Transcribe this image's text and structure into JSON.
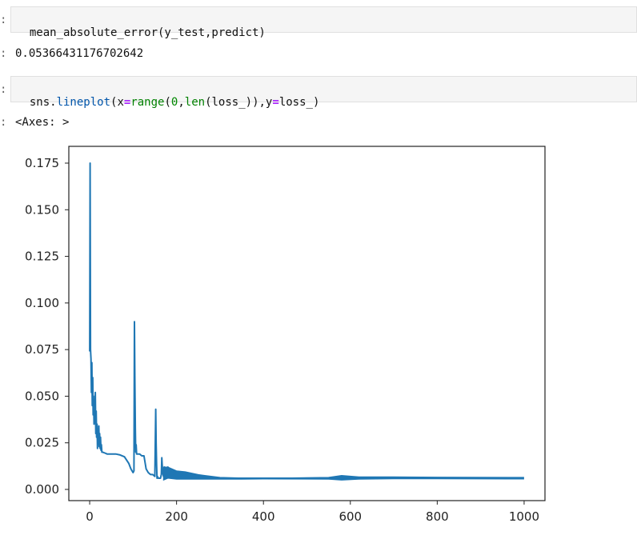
{
  "cells": [
    {
      "prompt": ":",
      "code": "mean_absolute_error(y_test,predict)",
      "output_prompt": ":",
      "output": "0.05366431176702642"
    },
    {
      "prompt": ":",
      "code_tokens": [
        {
          "text": "sns.",
          "kind": "plain"
        },
        {
          "text": "lineplot",
          "kind": "fn"
        },
        {
          "text": "(x",
          "kind": "plain"
        },
        {
          "text": "=",
          "kind": "op"
        },
        {
          "text": "range",
          "kind": "builtin"
        },
        {
          "text": "(",
          "kind": "plain"
        },
        {
          "text": "0",
          "kind": "num"
        },
        {
          "text": ",",
          "kind": "plain"
        },
        {
          "text": "len",
          "kind": "builtin"
        },
        {
          "text": "(loss_)),y",
          "kind": "plain"
        },
        {
          "text": "=",
          "kind": "op"
        },
        {
          "text": "loss_)",
          "kind": "plain"
        }
      ],
      "output_prompt": ":",
      "output": "<Axes: >"
    }
  ],
  "chart_data": {
    "type": "line",
    "title": "",
    "xlabel": "",
    "ylabel": "",
    "xlim": [
      -48,
      1048
    ],
    "ylim": [
      -0.006,
      0.184
    ],
    "x_ticks": [
      0,
      200,
      400,
      600,
      800,
      1000
    ],
    "x_tick_labels": [
      "0",
      "200",
      "400",
      "600",
      "800",
      "1000"
    ],
    "y_ticks": [
      0.0,
      0.025,
      0.05,
      0.075,
      0.1,
      0.125,
      0.15,
      0.175
    ],
    "y_tick_labels": [
      "0.000",
      "0.025",
      "0.050",
      "0.075",
      "0.100",
      "0.125",
      "0.150",
      "0.175"
    ],
    "grid": false,
    "line_color": "#1f77b4",
    "series": [
      {
        "x": [
          0,
          1,
          2,
          3,
          4,
          5,
          6,
          7,
          8,
          9,
          10,
          11,
          12,
          13,
          14,
          15,
          16,
          17,
          18,
          19,
          20,
          21,
          22,
          23,
          24,
          25,
          26,
          27,
          28,
          30,
          35,
          40,
          50,
          60,
          70,
          80,
          90,
          95,
          100,
          102,
          103,
          104,
          105,
          106,
          107,
          108,
          110,
          115,
          120,
          125,
          130,
          135,
          140,
          145,
          150,
          152,
          153,
          154,
          155,
          156,
          158,
          160,
          163,
          165,
          166,
          167,
          168,
          170,
          172,
          174,
          176,
          178,
          180,
          182,
          185,
          190,
          195,
          200,
          205,
          210,
          220,
          230,
          240,
          250,
          260,
          280,
          300,
          330,
          360,
          400,
          450,
          500,
          550,
          580,
          600,
          620,
          650,
          700,
          750,
          800,
          850,
          900,
          950,
          999
        ],
        "y": [
          0.074,
          0.175,
          0.075,
          0.07,
          0.052,
          0.068,
          0.045,
          0.06,
          0.04,
          0.05,
          0.035,
          0.048,
          0.038,
          0.052,
          0.03,
          0.042,
          0.028,
          0.035,
          0.022,
          0.03,
          0.026,
          0.034,
          0.023,
          0.03,
          0.022,
          0.028,
          0.021,
          0.024,
          0.02,
          0.02,
          0.0195,
          0.019,
          0.019,
          0.019,
          0.0185,
          0.0175,
          0.014,
          0.011,
          0.009,
          0.01,
          0.09,
          0.06,
          0.033,
          0.02,
          0.024,
          0.019,
          0.019,
          0.019,
          0.018,
          0.018,
          0.011,
          0.009,
          0.008,
          0.008,
          0.007,
          0.043,
          0.025,
          0.013,
          0.006,
          0.007,
          0.006,
          0.006,
          0.006,
          0.008,
          0.017,
          0.013,
          0.009,
          0.007,
          0.012,
          0.008,
          0.011,
          0.007,
          0.012,
          0.008,
          0.0105,
          0.008,
          0.0095,
          0.008,
          0.009,
          0.0075,
          0.0085,
          0.007,
          0.0075,
          0.0068,
          0.007,
          0.0065,
          0.006,
          0.006,
          0.006,
          0.006,
          0.006,
          0.006,
          0.006,
          0.0065,
          0.0062,
          0.0063,
          0.0062,
          0.0064,
          0.0062,
          0.0062,
          0.006,
          0.006,
          0.006,
          0.006
        ],
        "band_x": [
          170,
          180,
          200,
          220,
          250,
          300,
          350,
          400,
          550,
          580,
          620,
          700,
          800,
          999
        ],
        "band_low": [
          0.005,
          0.006,
          0.0055,
          0.0055,
          0.0055,
          0.0055,
          0.0055,
          0.0056,
          0.0055,
          0.005,
          0.0055,
          0.0057,
          0.0057,
          0.0056
        ],
        "band_high": [
          0.012,
          0.012,
          0.01,
          0.0095,
          0.008,
          0.0065,
          0.0062,
          0.006,
          0.0065,
          0.0075,
          0.0068,
          0.0068,
          0.0066,
          0.0065
        ]
      }
    ]
  }
}
